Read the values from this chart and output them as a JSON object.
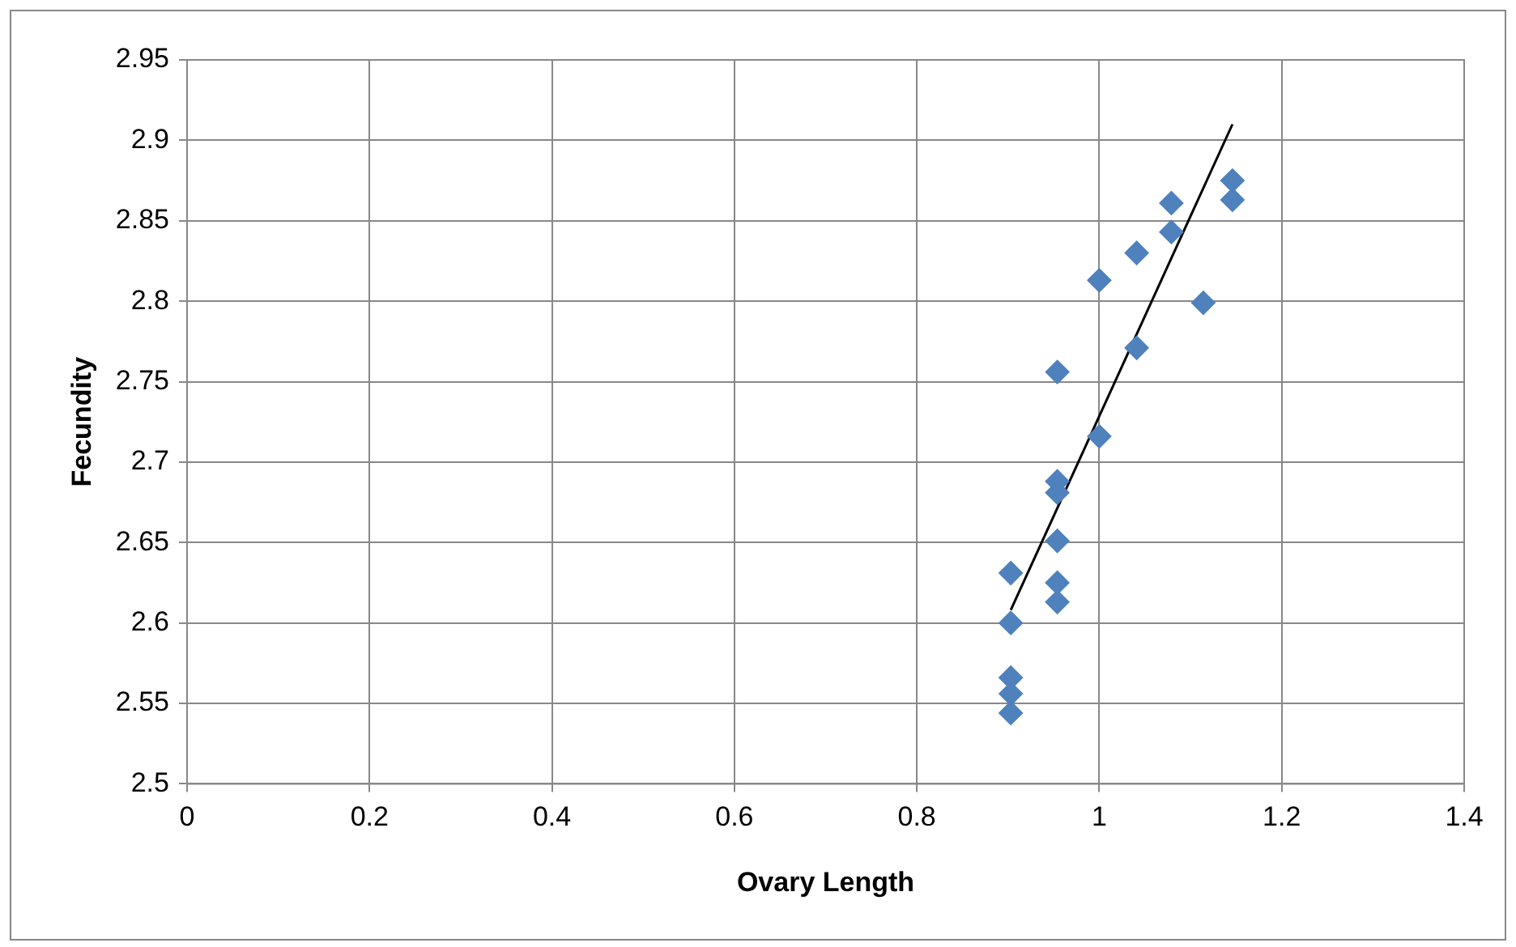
{
  "chart_data": {
    "type": "scatter",
    "xlabel": "Ovary Length",
    "ylabel": "Fecundity",
    "xlim": [
      0,
      1.4
    ],
    "xticks": [
      0,
      0.2,
      0.4,
      0.6,
      0.8,
      1,
      1.2,
      1.4
    ],
    "ylim": [
      2.5,
      2.95
    ],
    "yticks": [
      2.5,
      2.55,
      2.6,
      2.65,
      2.7,
      2.75,
      2.8,
      2.85,
      2.9,
      2.95
    ],
    "grid": true,
    "legend": false,
    "marker": "diamond",
    "series": [
      {
        "color": "#4f81bd",
        "x": [
          0.903,
          0.903,
          0.903,
          0.903,
          0.903,
          0.954,
          0.954,
          0.954,
          0.954,
          0.954,
          0.954,
          1.0,
          1.0,
          1.041,
          1.041,
          1.079,
          1.079,
          1.114,
          1.146,
          1.146
        ],
        "values": [
          2.631,
          2.6,
          2.566,
          2.556,
          2.544,
          2.756,
          2.688,
          2.681,
          2.651,
          2.625,
          2.613,
          2.716,
          2.813,
          2.771,
          2.83,
          2.861,
          2.843,
          2.799,
          2.875,
          2.863
        ]
      },
      {
        "type": "line",
        "color": "#000000",
        "marker": "none",
        "x": [
          0.903,
          1.146
        ],
        "values": [
          2.608,
          2.91
        ]
      }
    ]
  }
}
